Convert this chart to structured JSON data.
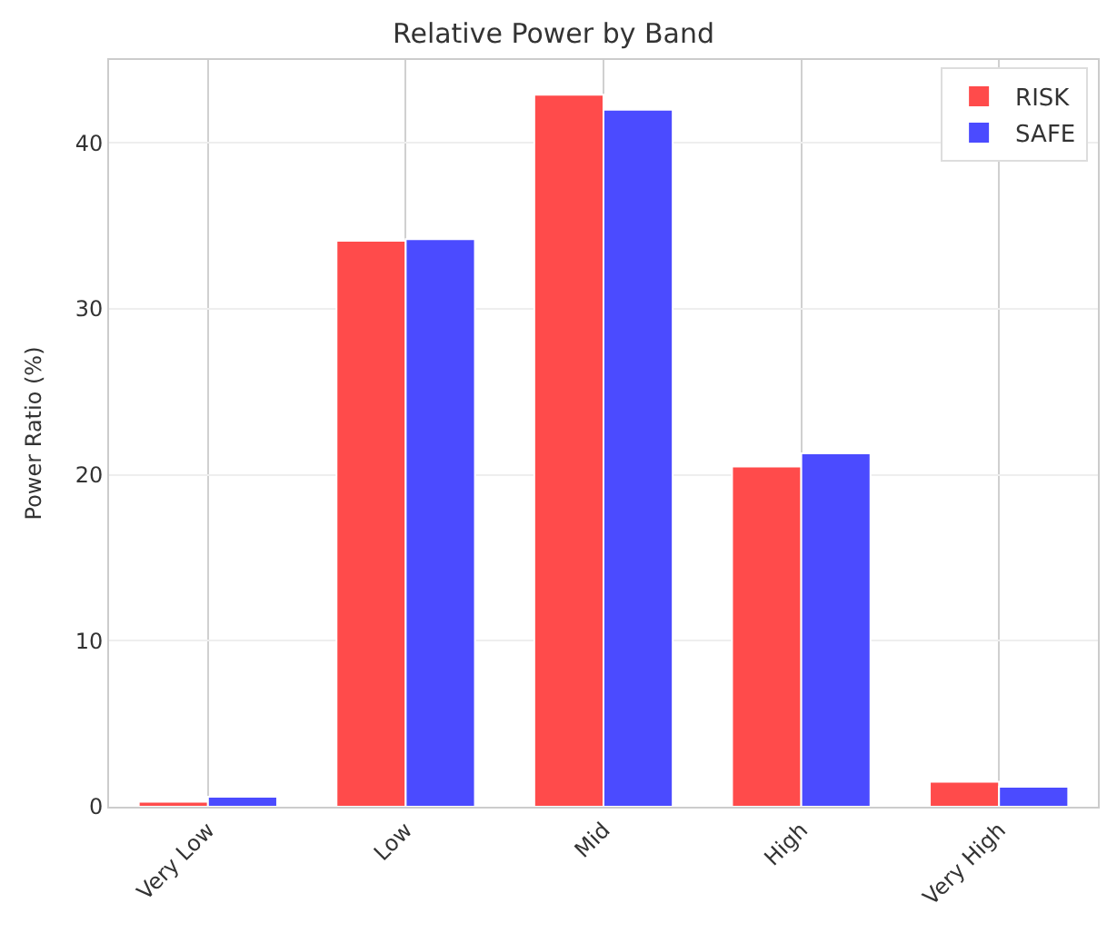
{
  "chart_data": {
    "type": "bar",
    "title": "Relative Power by Band",
    "ylabel": "Power Ratio (%)",
    "categories": [
      "Very Low",
      "Low",
      "Mid",
      "High",
      "Very High"
    ],
    "series": [
      {
        "name": "RISK",
        "color": "#ff4b4b",
        "values": [
          0.3,
          34.1,
          42.9,
          20.5,
          1.5
        ]
      },
      {
        "name": "SAFE",
        "color": "#4b4bff",
        "values": [
          0.6,
          34.2,
          42.0,
          21.3,
          1.2
        ]
      }
    ],
    "ylim": [
      0,
      45
    ],
    "yticks": [
      0,
      10,
      20,
      30,
      40
    ],
    "grid": true,
    "legend": "top right"
  }
}
